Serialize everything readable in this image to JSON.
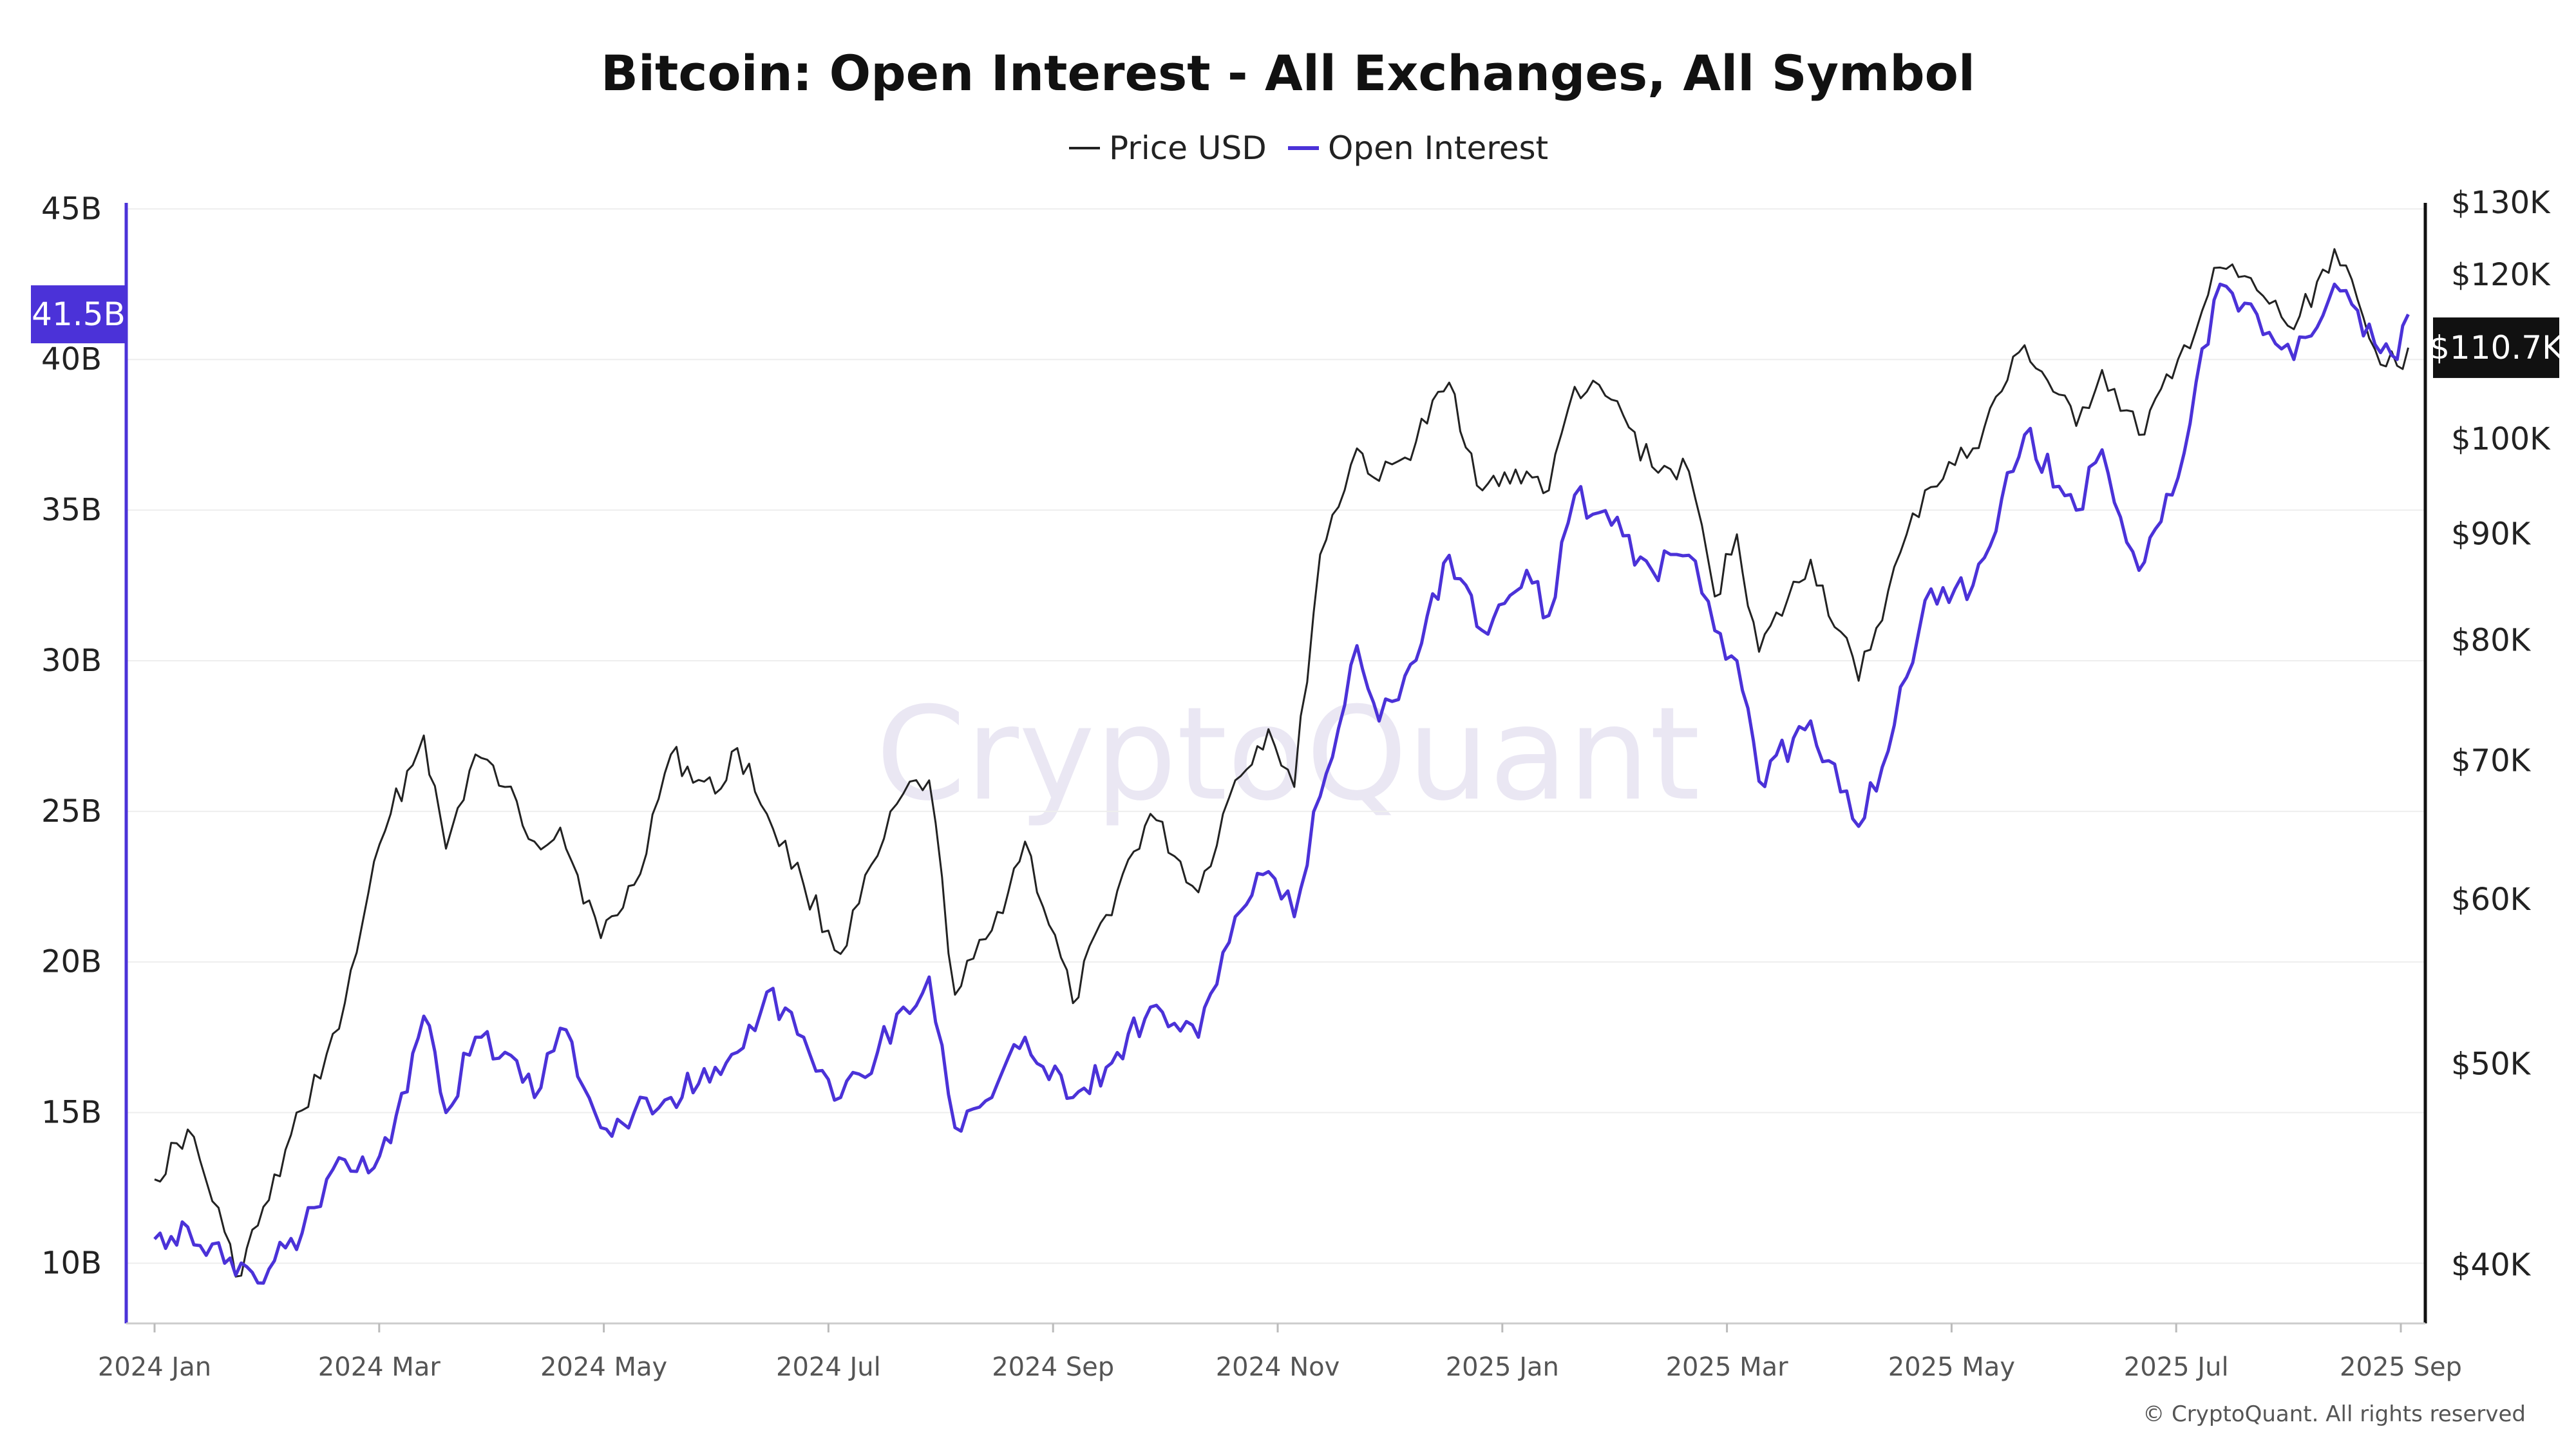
{
  "title": "Bitcoin: Open Interest - All Exchanges, All Symbol",
  "legend": {
    "price_label": "Price USD",
    "oi_label": "Open Interest"
  },
  "watermark": "CryptoQuant",
  "copyright": "© CryptoQuant. All rights reserved",
  "colors": {
    "price": "#222222",
    "open_interest": "#4b32d8",
    "grid": "#eeeeee",
    "left_axis": "#4b32d8",
    "right_axis": "#111111"
  },
  "chart_data": {
    "type": "line",
    "title": "Bitcoin: Open Interest - All Exchanges, All Symbol",
    "x_ticks": [
      "2024 Jan",
      "2024 Mar",
      "2024 May",
      "2024 Jul",
      "2024 Sep",
      "2024 Nov",
      "2025 Jan",
      "2025 Mar",
      "2025 May",
      "2025 Jul",
      "2025 Sep"
    ],
    "left_axis": {
      "ticks": [
        "45B",
        "40B",
        "35B",
        "30B",
        "25B",
        "20B",
        "15B",
        "10B"
      ],
      "tick_values": [
        45,
        40,
        35,
        30,
        25,
        20,
        15,
        10
      ],
      "unit": "B",
      "range": [
        8,
        45.2
      ]
    },
    "right_axis": {
      "scale": "log",
      "ticks": [
        "$130K",
        "$120K",
        "$100K",
        "$90K",
        "$80K",
        "$70K",
        "$60K",
        "$50K",
        "$40K"
      ],
      "tick_values": [
        130000,
        120000,
        100000,
        90000,
        80000,
        70000,
        60000,
        50000,
        40000
      ],
      "range": [
        37500,
        130000
      ]
    },
    "current_badges": {
      "open_interest": "41.5B",
      "price": "$110.7K"
    },
    "series": [
      {
        "name": "Price USD",
        "axis": "right",
        "points": [
          [
            "2024-01-01",
            44000
          ],
          [
            "2024-01-10",
            46500
          ],
          [
            "2024-01-20",
            41500
          ],
          [
            "2024-01-23",
            39500
          ],
          [
            "2024-02-01",
            43000
          ],
          [
            "2024-02-10",
            47500
          ],
          [
            "2024-02-20",
            52000
          ],
          [
            "2024-02-28",
            60500
          ],
          [
            "2024-03-05",
            66000
          ],
          [
            "2024-03-14",
            72000
          ],
          [
            "2024-03-20",
            63500
          ],
          [
            "2024-03-28",
            70500
          ],
          [
            "2024-04-05",
            68000
          ],
          [
            "2024-04-13",
            64000
          ],
          [
            "2024-04-20",
            65000
          ],
          [
            "2024-05-01",
            57500
          ],
          [
            "2024-05-10",
            61000
          ],
          [
            "2024-05-20",
            70500
          ],
          [
            "2024-06-01",
            67500
          ],
          [
            "2024-06-07",
            71000
          ],
          [
            "2024-06-15",
            66000
          ],
          [
            "2024-06-25",
            61000
          ],
          [
            "2024-07-05",
            56500
          ],
          [
            "2024-07-15",
            63000
          ],
          [
            "2024-07-22",
            67500
          ],
          [
            "2024-07-29",
            68500
          ],
          [
            "2024-08-05",
            54000
          ],
          [
            "2024-08-15",
            58000
          ],
          [
            "2024-08-24",
            64000
          ],
          [
            "2024-09-06",
            53500
          ],
          [
            "2024-09-15",
            59000
          ],
          [
            "2024-09-27",
            66000
          ],
          [
            "2024-10-10",
            60500
          ],
          [
            "2024-10-20",
            68500
          ],
          [
            "2024-10-29",
            72500
          ],
          [
            "2024-11-05",
            68000
          ],
          [
            "2024-11-12",
            88000
          ],
          [
            "2024-11-22",
            99000
          ],
          [
            "2024-11-28",
            95500
          ],
          [
            "2024-12-05",
            98000
          ],
          [
            "2024-12-17",
            106500
          ],
          [
            "2024-12-26",
            94500
          ],
          [
            "2025-01-07",
            96500
          ],
          [
            "2025-01-13",
            94500
          ],
          [
            "2025-01-20",
            106000
          ],
          [
            "2025-01-30",
            104500
          ],
          [
            "2025-02-10",
            97000
          ],
          [
            "2025-02-20",
            96500
          ],
          [
            "2025-02-27",
            84000
          ],
          [
            "2025-03-05",
            90000
          ],
          [
            "2025-03-11",
            79000
          ],
          [
            "2025-03-25",
            87500
          ],
          [
            "2025-04-07",
            76500
          ],
          [
            "2025-04-15",
            84500
          ],
          [
            "2025-04-25",
            94500
          ],
          [
            "2025-05-08",
            99000
          ],
          [
            "2025-05-22",
            111000
          ],
          [
            "2025-06-05",
            101500
          ],
          [
            "2025-06-12",
            108000
          ],
          [
            "2025-06-22",
            100500
          ],
          [
            "2025-07-01",
            107000
          ],
          [
            "2025-07-14",
            121000
          ],
          [
            "2025-07-24",
            118000
          ],
          [
            "2025-08-03",
            113000
          ],
          [
            "2025-08-14",
            123500
          ],
          [
            "2025-08-25",
            110500
          ],
          [
            "2025-08-31",
            108500
          ],
          [
            "2025-09-03",
            110700
          ]
        ]
      },
      {
        "name": "Open Interest",
        "axis": "left",
        "points": [
          [
            "2024-01-01",
            10.8
          ],
          [
            "2024-01-10",
            11.2
          ],
          [
            "2024-01-20",
            10.0
          ],
          [
            "2024-01-23",
            9.6
          ],
          [
            "2024-02-01",
            9.8
          ],
          [
            "2024-02-10",
            11.0
          ],
          [
            "2024-02-20",
            13.5
          ],
          [
            "2024-02-28",
            13.0
          ],
          [
            "2024-03-05",
            14.0
          ],
          [
            "2024-03-14",
            18.2
          ],
          [
            "2024-03-20",
            15.0
          ],
          [
            "2024-03-28",
            17.5
          ],
          [
            "2024-04-05",
            17.0
          ],
          [
            "2024-04-13",
            15.5
          ],
          [
            "2024-04-20",
            17.8
          ],
          [
            "2024-05-01",
            14.5
          ],
          [
            "2024-05-10",
            15.0
          ],
          [
            "2024-05-20",
            15.5
          ],
          [
            "2024-06-01",
            16.5
          ],
          [
            "2024-06-07",
            17.0
          ],
          [
            "2024-06-15",
            19.0
          ],
          [
            "2024-06-25",
            17.5
          ],
          [
            "2024-07-05",
            15.5
          ],
          [
            "2024-07-15",
            17.0
          ],
          [
            "2024-07-22",
            18.5
          ],
          [
            "2024-07-29",
            19.5
          ],
          [
            "2024-08-05",
            14.5
          ],
          [
            "2024-08-15",
            15.5
          ],
          [
            "2024-08-24",
            17.5
          ],
          [
            "2024-09-06",
            15.5
          ],
          [
            "2024-09-15",
            16.5
          ],
          [
            "2024-09-27",
            18.5
          ],
          [
            "2024-10-10",
            17.5
          ],
          [
            "2024-10-20",
            21.5
          ],
          [
            "2024-10-29",
            23.0
          ],
          [
            "2024-11-05",
            21.5
          ],
          [
            "2024-11-12",
            25.5
          ],
          [
            "2024-11-22",
            30.5
          ],
          [
            "2024-11-28",
            28.0
          ],
          [
            "2024-12-05",
            29.5
          ],
          [
            "2024-12-17",
            33.5
          ],
          [
            "2024-12-26",
            31.0
          ],
          [
            "2025-01-07",
            33.0
          ],
          [
            "2025-01-13",
            31.5
          ],
          [
            "2025-01-20",
            35.5
          ],
          [
            "2025-01-30",
            34.5
          ],
          [
            "2025-02-10",
            33.0
          ],
          [
            "2025-02-20",
            33.5
          ],
          [
            "2025-02-27",
            31.0
          ],
          [
            "2025-03-05",
            30.0
          ],
          [
            "2025-03-11",
            26.0
          ],
          [
            "2025-03-25",
            28.0
          ],
          [
            "2025-04-07",
            24.5
          ],
          [
            "2025-04-15",
            27.0
          ],
          [
            "2025-04-25",
            32.0
          ],
          [
            "2025-05-08",
            32.5
          ],
          [
            "2025-05-22",
            37.5
          ],
          [
            "2025-06-05",
            35.0
          ],
          [
            "2025-06-12",
            37.0
          ],
          [
            "2025-06-22",
            33.0
          ],
          [
            "2025-07-01",
            35.5
          ],
          [
            "2025-07-14",
            42.5
          ],
          [
            "2025-07-24",
            41.5
          ],
          [
            "2025-08-03",
            40.0
          ],
          [
            "2025-08-14",
            42.5
          ],
          [
            "2025-08-25",
            40.5
          ],
          [
            "2025-08-31",
            40.0
          ],
          [
            "2025-09-03",
            41.5
          ]
        ]
      }
    ]
  }
}
